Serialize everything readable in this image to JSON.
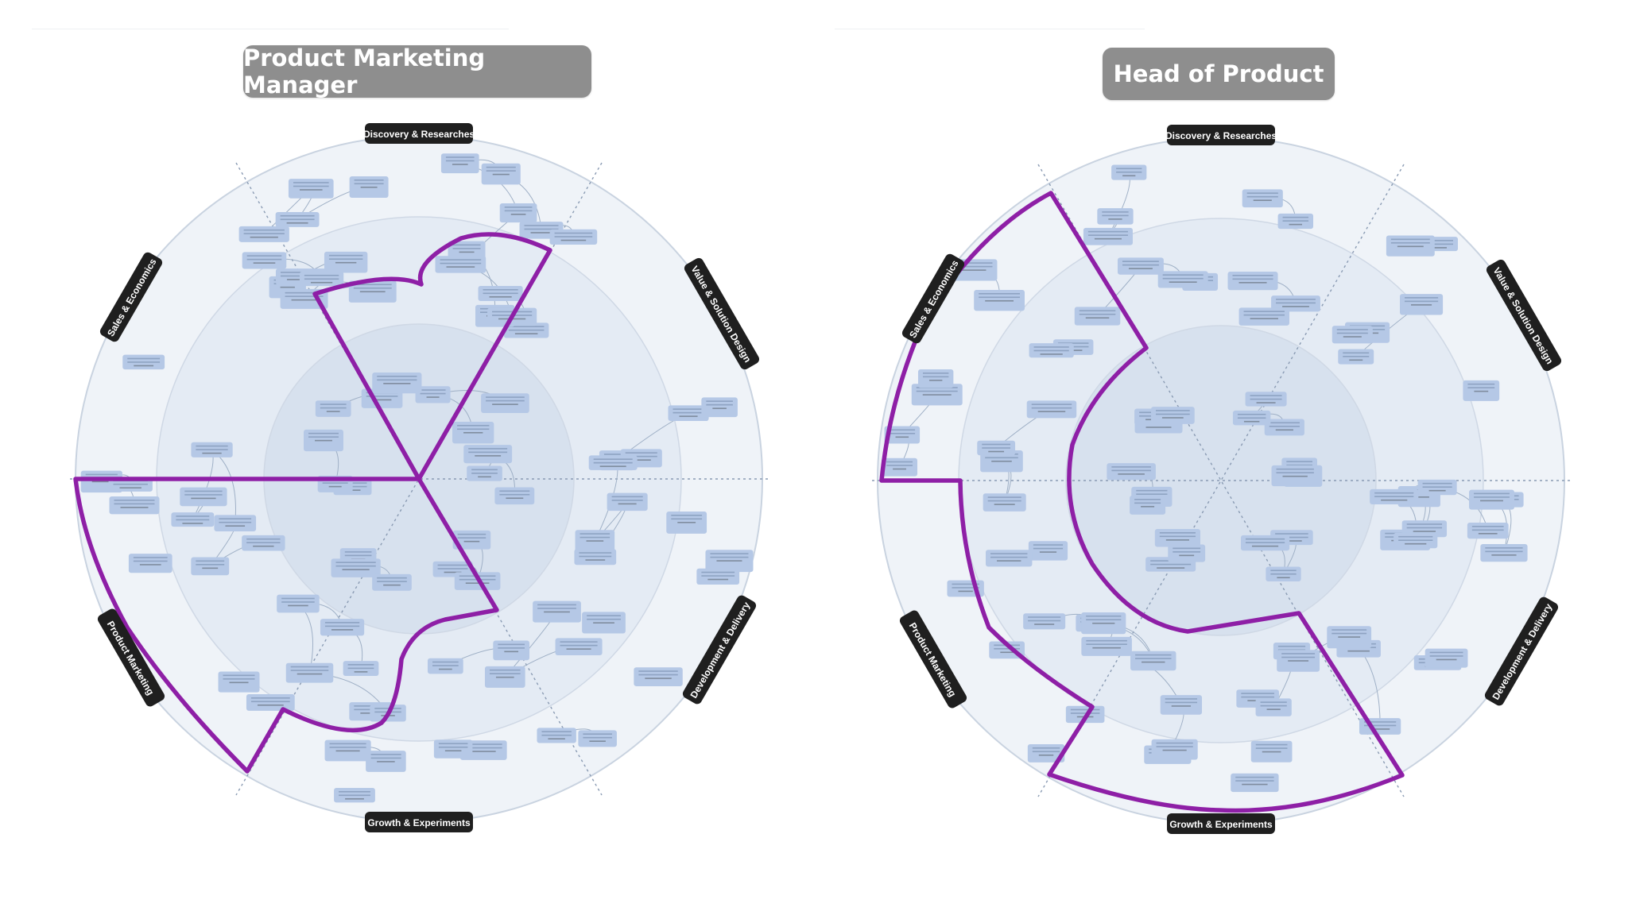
{
  "panels": [
    {
      "title": "Product Marketing Manager",
      "sectors": [
        "Discovery & Researches",
        "Value & Solution Design",
        "Development & Delivery",
        "Growth & Experiments",
        "Product Marketing",
        "Sales & Economics"
      ]
    },
    {
      "title": "Head of Product",
      "sectors": [
        "Discovery & Researches",
        "Value & Solution Design",
        "Development & Delivery",
        "Growth & Experiments",
        "Product Marketing",
        "Sales & Economics"
      ]
    }
  ],
  "colors": {
    "title_bg": "#8e8e8e",
    "label_bg": "#1f1f1f",
    "node_fill": "#b5c8e6",
    "wheel_outer": "#eff3f8",
    "wheel_mid": "#e4ebf4",
    "wheel_inner": "#d7e1ee",
    "highlight": "#8e1fa6"
  }
}
